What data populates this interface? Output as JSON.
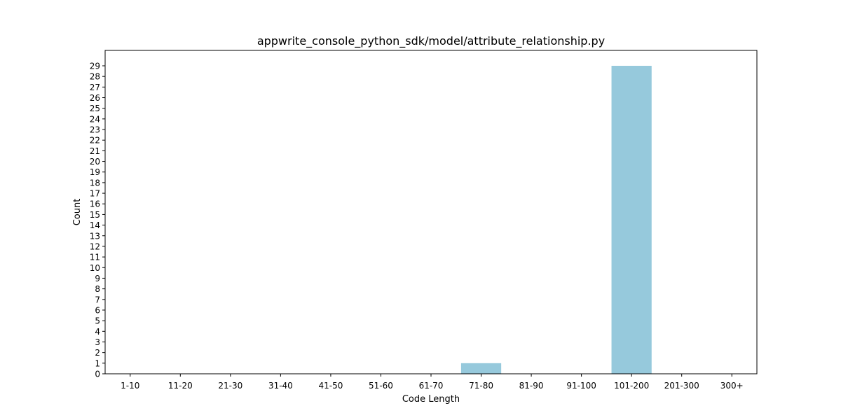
{
  "chart_data": {
    "type": "bar",
    "title": "appwrite_console_python_sdk/model/attribute_relationship.py",
    "xlabel": "Code Length",
    "ylabel": "Count",
    "categories": [
      "1-10",
      "11-20",
      "21-30",
      "31-40",
      "41-50",
      "51-60",
      "61-70",
      "71-80",
      "81-90",
      "91-100",
      "101-200",
      "201-300",
      "300+"
    ],
    "values": [
      0,
      0,
      0,
      0,
      0,
      0,
      0,
      1,
      0,
      0,
      29,
      0,
      0
    ],
    "ylim": [
      0,
      30.45
    ],
    "yticks": [
      0,
      1,
      2,
      3,
      4,
      5,
      6,
      7,
      8,
      9,
      10,
      11,
      12,
      13,
      14,
      15,
      16,
      17,
      18,
      19,
      20,
      21,
      22,
      23,
      24,
      25,
      26,
      27,
      28,
      29
    ],
    "bar_color": "#96c9dc",
    "grid": false,
    "legend": "none"
  }
}
